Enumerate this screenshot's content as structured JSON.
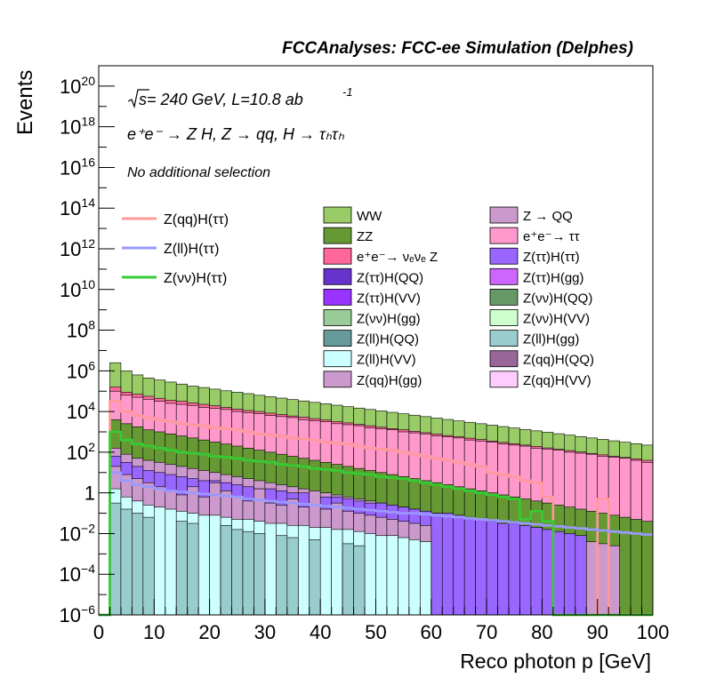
{
  "header": {
    "title": "FCCAnalyses: FCC-ee Simulation (Delphes)"
  },
  "annotations": {
    "sqrt_s": "s",
    "energy_lumi": " = 240 GeV, L=10.8 ab",
    "lumi_exp": "-1",
    "process": "e⁺e⁻ → Z H, Z → qq, H → τₕτₕ",
    "selection": "No additional selection"
  },
  "chart_data": {
    "type": "histogram",
    "title": "FCCAnalyses: FCC-ee Simulation (Delphes)",
    "xlabel": "Reco photon p [GeV]",
    "ylabel": "Events",
    "yscale": "log",
    "xlim": [
      0,
      100
    ],
    "ylim": [
      1e-06,
      1e+21
    ],
    "bin_width": 2,
    "x_ticks": [
      0,
      10,
      20,
      30,
      40,
      50,
      60,
      70,
      80,
      90,
      100
    ],
    "x_tick_labels": [
      "0",
      "10",
      "20",
      "30",
      "40",
      "50",
      "60",
      "70",
      "80",
      "90",
      "100"
    ],
    "y_ticks": [
      {
        "value": 1e-06,
        "base": "10",
        "exp": "−6"
      },
      {
        "value": 0.0001,
        "base": "10",
        "exp": "−4"
      },
      {
        "value": 0.01,
        "base": "10",
        "exp": "−2"
      },
      {
        "value": 1,
        "base": "1",
        "exp": ""
      },
      {
        "value": 100.0,
        "base": "10",
        "exp": "2"
      },
      {
        "value": 10000.0,
        "base": "10",
        "exp": "4"
      },
      {
        "value": 1000000.0,
        "base": "10",
        "exp": "6"
      },
      {
        "value": 100000000.0,
        "base": "10",
        "exp": "8"
      },
      {
        "value": 10000000000.0,
        "base": "10",
        "exp": "10"
      },
      {
        "value": 1000000000000.0,
        "base": "10",
        "exp": "12"
      },
      {
        "value": 100000000000000.0,
        "base": "10",
        "exp": "14"
      },
      {
        "value": 1e+16,
        "base": "10",
        "exp": "16"
      },
      {
        "value": 1e+18,
        "base": "10",
        "exp": "18"
      },
      {
        "value": 1e+20,
        "base": "10",
        "exp": "20"
      }
    ],
    "stack_order_bottom_to_top": [
      "Z(ll)H(gg)",
      "Z(ll)H(VV)",
      "Z(qq)H(gg)",
      "Z(ττ)H(ττ)",
      "Z → QQ",
      "ZZ",
      "e⁺e⁻→ ττ",
      "e⁺e⁻→ νₑνₑ Z",
      "WW"
    ],
    "stacked": [
      {
        "name": "Z(ll)H(gg)",
        "color": "#99cccc",
        "log10_values": [
          -6,
          -0.5,
          -0.8,
          -1,
          -1.2,
          -6,
          -6,
          -1.4,
          -1.5,
          -6,
          -6,
          -1.6,
          -1.8,
          -1.9,
          -2,
          -6,
          -2.1,
          -2.2,
          -6,
          -2.3,
          -6,
          -6,
          -2.5,
          -2.6,
          -6,
          -6,
          -6,
          -6,
          -6,
          -6,
          -6,
          -6,
          -6,
          -6,
          -6,
          -6,
          -6,
          -6,
          -6,
          -6,
          -6,
          -6,
          -6,
          -6,
          -6,
          -6,
          -6,
          -6,
          -6,
          -6
        ]
      },
      {
        "name": "Z(ll)H(VV)",
        "color": "#ccffff",
        "log10_values": [
          -6,
          0.2,
          -0.2,
          -0.4,
          -0.6,
          -0.7,
          -0.8,
          -0.9,
          -1,
          -1.1,
          -1.1,
          -1.2,
          -1.3,
          -1.3,
          -1.4,
          -1.5,
          -1.5,
          -1.6,
          -1.6,
          -1.7,
          -1.7,
          -1.8,
          -1.8,
          -1.9,
          -2,
          -2.1,
          -2.1,
          -2.2,
          -2.3,
          -2.4,
          -6,
          -6,
          -6,
          -6,
          -6,
          -6,
          -6,
          -6,
          -6,
          -6,
          -6,
          -6,
          -6,
          -6,
          -6,
          -6,
          -6,
          -6,
          -6,
          -6
        ]
      },
      {
        "name": "Z(qq)H(gg)",
        "color": "#cc99cc",
        "log10_values": [
          -6,
          1.3,
          0.9,
          0.7,
          0.5,
          0.3,
          0.1,
          -0.1,
          0.3,
          -0.2,
          0.5,
          0.1,
          -0.2,
          -0.4,
          0.2,
          -0.5,
          -0.6,
          -0.3,
          -0.7,
          0.1,
          -0.8,
          -0.5,
          -0.9,
          -1,
          -1.1,
          -1.2,
          -1.3,
          -1.4,
          -1.5,
          -1.6,
          -6,
          -6,
          -6,
          -6,
          -6,
          -6,
          -6,
          -6,
          -6,
          -6,
          -6,
          -6,
          -6,
          -6,
          -6,
          -6,
          -6,
          -6,
          -6,
          -6
        ]
      },
      {
        "name": "Z(ττ)H(ττ)",
        "color": "#9966ff",
        "log10_values": [
          -6,
          1.8,
          1.5,
          1.3,
          1.1,
          1,
          0.9,
          0.8,
          0.7,
          0.6,
          0.6,
          0.5,
          0.4,
          0.3,
          0.2,
          0.2,
          0.1,
          0,
          0,
          -0.1,
          -0.2,
          -0.2,
          -0.3,
          -0.4,
          -0.5,
          -0.5,
          -0.6,
          -0.7,
          -0.8,
          -0.9,
          -1,
          -1,
          -1.1,
          -1.2,
          -1.3,
          -1.4,
          -1.5,
          -1.5,
          -1.6,
          -1.7,
          -1.8,
          -1.9,
          -2,
          -2.1,
          -6,
          -6,
          -6,
          -6,
          -6,
          -6
        ]
      },
      {
        "name": "Z → QQ",
        "color": "#cc99cc",
        "log10_values": [
          -6,
          2.2,
          1.9,
          1.7,
          1.6,
          1.5,
          1.4,
          1.3,
          1.2,
          1.1,
          1,
          0.9,
          0.8,
          0.7,
          0.6,
          0.5,
          0.4,
          0.3,
          0.2,
          0.1,
          0,
          -0.1,
          -0.2,
          -0.3,
          -0.4,
          -0.5,
          -0.6,
          -0.7,
          -0.8,
          -0.9,
          -1,
          -1.1,
          -1.2,
          -1.3,
          -1.4,
          -1.5,
          -1.6,
          -1.7,
          -1.8,
          -1.9,
          -2,
          -2.1,
          -2.2,
          -2.3,
          -2.4,
          -2.5,
          -2.6,
          -6,
          -6,
          -6
        ]
      },
      {
        "name": "ZZ",
        "color": "#669933",
        "log10_values": [
          -6,
          3.6,
          3.4,
          3.25,
          3.1,
          3,
          2.9,
          2.8,
          2.7,
          2.6,
          2.5,
          2.4,
          2.3,
          2.2,
          2.1,
          2,
          1.9,
          1.8,
          1.7,
          1.6,
          1.5,
          1.4,
          1.3,
          1.2,
          1.1,
          1,
          0.9,
          0.8,
          0.7,
          0.6,
          0.5,
          0.4,
          0.3,
          0.2,
          0.1,
          0,
          -0.1,
          -0.2,
          -0.3,
          -0.4,
          -0.5,
          -0.6,
          -0.7,
          -0.8,
          -0.9,
          -1,
          -1.1,
          -1.2,
          -1.3,
          -1.4
        ]
      },
      {
        "name": "e⁺e⁻→ ττ",
        "color": "#ff99cc",
        "log10_values": [
          -6,
          5,
          4.8,
          4.7,
          4.6,
          4.5,
          4.4,
          4.35,
          4.3,
          4.2,
          4.15,
          4.1,
          4,
          3.95,
          3.9,
          3.8,
          3.75,
          3.7,
          3.6,
          3.55,
          3.5,
          3.4,
          3.35,
          3.3,
          3.2,
          3.15,
          3.1,
          3,
          2.95,
          2.9,
          2.8,
          2.75,
          2.7,
          2.6,
          2.55,
          2.5,
          2.4,
          2.35,
          2.3,
          2.2,
          2.15,
          2.1,
          2,
          1.95,
          1.9,
          1.8,
          1.75,
          1.7,
          1.6,
          1.5
        ]
      },
      {
        "name": "e⁺e⁻→ νₑνₑ Z",
        "color": "#ff6699",
        "log10_values": [
          -6,
          5.2,
          4.95,
          4.85,
          4.75,
          4.65,
          4.55,
          4.5,
          4.42,
          4.35,
          4.28,
          4.2,
          4.12,
          4.05,
          4,
          3.92,
          3.85,
          3.78,
          3.72,
          3.65,
          3.58,
          3.5,
          3.44,
          3.37,
          3.3,
          3.23,
          3.16,
          3.1,
          3.03,
          2.96,
          2.89,
          2.82,
          2.76,
          2.69,
          2.62,
          2.55,
          2.48,
          2.42,
          2.35,
          2.28,
          2.21,
          2.14,
          2.08,
          2.01,
          1.94,
          1.87,
          1.8,
          1.74,
          1.67,
          1.6
        ]
      },
      {
        "name": "WW",
        "color": "#99cc66",
        "log10_values": [
          -6,
          6.4,
          6,
          5.8,
          5.65,
          5.55,
          5.45,
          5.35,
          5.25,
          5.18,
          5.1,
          5.02,
          4.95,
          4.88,
          4.8,
          4.73,
          4.66,
          4.59,
          4.52,
          4.45,
          4.38,
          4.31,
          4.24,
          4.17,
          4.1,
          4.03,
          3.96,
          3.89,
          3.82,
          3.75,
          3.68,
          3.61,
          3.54,
          3.47,
          3.4,
          3.33,
          3.26,
          3.19,
          3.12,
          3.05,
          2.98,
          2.91,
          2.84,
          2.77,
          2.7,
          2.63,
          2.56,
          2.49,
          2.42,
          2.35
        ]
      }
    ],
    "signals": [
      {
        "name": "Z(qq)H(ττ)",
        "color": "#ff9999",
        "log10_values": [
          -6,
          4.5,
          4,
          3.8,
          3.7,
          3.6,
          3.5,
          3.4,
          3.35,
          3.3,
          3.2,
          3.15,
          3.1,
          3,
          2.9,
          2.85,
          2.8,
          2.7,
          2.65,
          2.6,
          2.5,
          2.45,
          2.4,
          2.3,
          2.2,
          2.15,
          2.1,
          2,
          1.9,
          1.8,
          1.7,
          1.6,
          1.5,
          1.4,
          1.3,
          1,
          0.9,
          0.8,
          0.6,
          0.5,
          -0.2,
          -6,
          -6,
          -6,
          -6,
          -0.3,
          -6,
          -6,
          -6,
          -6
        ]
      },
      {
        "name": "Z(ll)H(ττ)",
        "color": "#9999ff",
        "log10_values": [
          -6,
          1,
          0.6,
          0.4,
          0.3,
          0.2,
          0.1,
          0.05,
          0,
          -0.05,
          -0.1,
          -0.15,
          -0.2,
          -0.3,
          -0.35,
          -0.4,
          -0.45,
          -0.5,
          -0.55,
          -0.6,
          -0.65,
          -0.7,
          -0.75,
          -0.8,
          -0.85,
          -0.9,
          -0.95,
          -1,
          -1,
          -1.05,
          -1.1,
          -1.15,
          -1.2,
          -1.25,
          -1.3,
          -1.35,
          -1.4,
          -1.45,
          -1.5,
          -1.55,
          -1.6,
          -1.65,
          -1.7,
          -1.75,
          -1.8,
          -1.85,
          -1.9,
          -1.95,
          -2,
          -2.05
        ]
      },
      {
        "name": "Z(νν)H(ττ)",
        "color": "#33cc33",
        "log10_values": [
          -6,
          3,
          2.6,
          2.4,
          2.3,
          2.2,
          2.1,
          2,
          1.95,
          1.9,
          1.8,
          1.75,
          1.7,
          1.6,
          1.55,
          1.5,
          1.4,
          1.35,
          1.3,
          1.2,
          1.15,
          1.1,
          1,
          0.95,
          0.9,
          0.8,
          0.75,
          0.7,
          0.6,
          0.5,
          0.4,
          0.3,
          0.2,
          0.1,
          0,
          -0.1,
          -0.2,
          -0.3,
          -1.3,
          -0.9,
          -1.4,
          -6,
          -6,
          -6,
          -6,
          -6,
          -6,
          -6,
          -6,
          -6
        ]
      }
    ],
    "legend_signals": [
      "Z(qq)H(ττ)",
      "Z(ll)H(ττ)",
      "Z(νν)H(ττ)"
    ],
    "legend_backgrounds": [
      {
        "label": "WW",
        "color": "#99cc66"
      },
      {
        "label": "Z → QQ",
        "color": "#cc99cc"
      },
      {
        "label": "ZZ",
        "color": "#669933"
      },
      {
        "label": "e⁺e⁻→ ττ",
        "color": "#ff99cc"
      },
      {
        "label": "e⁺e⁻→ νₑνₑ Z",
        "color": "#ff6699"
      },
      {
        "label": "Z(ττ)H(ττ)",
        "color": "#9966ff"
      },
      {
        "label": "Z(ττ)H(QQ)",
        "color": "#6633cc"
      },
      {
        "label": "Z(ττ)H(gg)",
        "color": "#cc66ff"
      },
      {
        "label": "Z(ττ)H(VV)",
        "color": "#9933ff"
      },
      {
        "label": "Z(νν)H(QQ)",
        "color": "#669966"
      },
      {
        "label": "Z(νν)H(gg)",
        "color": "#99cc99"
      },
      {
        "label": "Z(νν)H(VV)",
        "color": "#ccffcc"
      },
      {
        "label": "Z(ll)H(QQ)",
        "color": "#669999"
      },
      {
        "label": "Z(ll)H(gg)",
        "color": "#99cccc"
      },
      {
        "label": "Z(ll)H(VV)",
        "color": "#ccffff"
      },
      {
        "label": "Z(qq)H(QQ)",
        "color": "#996699"
      },
      {
        "label": "Z(qq)H(gg)",
        "color": "#cc99cc"
      },
      {
        "label": "Z(qq)H(VV)",
        "color": "#ffccff"
      }
    ]
  }
}
